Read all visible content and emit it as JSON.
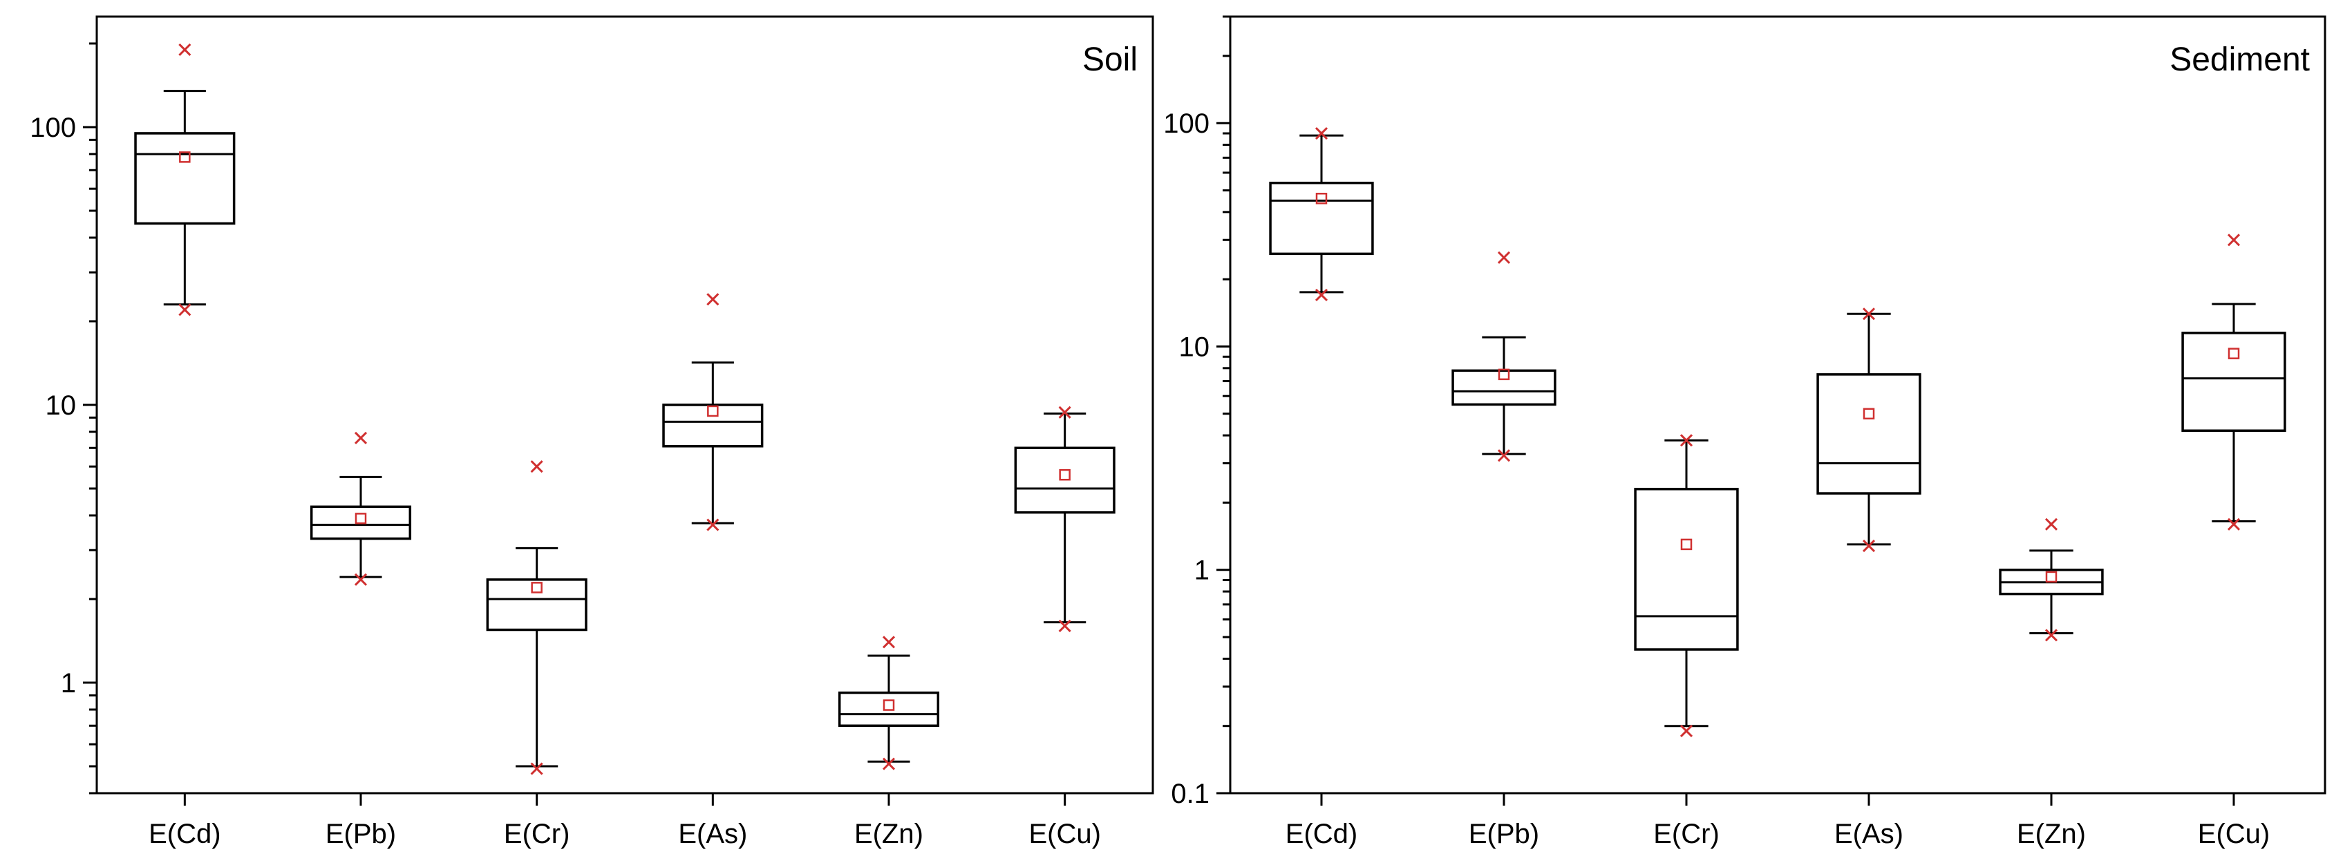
{
  "chart_data": [
    {
      "type": "box",
      "title": "Soil",
      "yscale": "log",
      "ylim": [
        0.4,
        250
      ],
      "yticks": [
        1,
        10,
        100
      ],
      "ytick_labels": [
        "1",
        "10",
        "100"
      ],
      "categories": [
        "E(Cd)",
        "E(Pb)",
        "E(Cr)",
        "E(As)",
        "E(Zn)",
        "E(Cu)"
      ],
      "boxes": [
        {
          "q1": 45,
          "median": 80,
          "q3": 95,
          "whisker_low": 23,
          "whisker_high": 135,
          "mean": 78,
          "min": 22,
          "max": 190
        },
        {
          "q1": 3.3,
          "median": 3.7,
          "q3": 4.3,
          "whisker_low": 2.4,
          "whisker_high": 5.5,
          "mean": 3.9,
          "min": 2.35,
          "max": 7.6
        },
        {
          "q1": 1.55,
          "median": 2.0,
          "q3": 2.35,
          "whisker_low": 0.5,
          "whisker_high": 3.05,
          "mean": 2.2,
          "min": 0.49,
          "max": 6.0
        },
        {
          "q1": 7.1,
          "median": 8.7,
          "q3": 10.0,
          "whisker_low": 3.75,
          "whisker_high": 14.2,
          "mean": 9.5,
          "min": 3.7,
          "max": 24.0
        },
        {
          "q1": 0.7,
          "median": 0.77,
          "q3": 0.92,
          "whisker_low": 0.52,
          "whisker_high": 1.25,
          "mean": 0.83,
          "min": 0.51,
          "max": 1.4
        },
        {
          "q1": 4.1,
          "median": 5.0,
          "q3": 7.0,
          "whisker_low": 1.65,
          "whisker_high": 9.3,
          "mean": 5.6,
          "min": 1.6,
          "max": 9.4
        }
      ],
      "colors": {
        "box": "#000000",
        "mean_marker": "#d03030",
        "extreme_marker": "#d03030"
      }
    },
    {
      "type": "box",
      "title": "Sediment",
      "yscale": "log",
      "ylim": [
        0.1,
        300
      ],
      "yticks": [
        0.1,
        1,
        10,
        100
      ],
      "ytick_labels": [
        "0.1",
        "1",
        "10",
        "100"
      ],
      "categories": [
        "E(Cd)",
        "E(Pb)",
        "E(Cr)",
        "E(As)",
        "E(Zn)",
        "E(Cu)"
      ],
      "boxes": [
        {
          "q1": 26,
          "median": 45,
          "q3": 54,
          "whisker_low": 17.5,
          "whisker_high": 88,
          "mean": 46,
          "min": 17,
          "max": 90
        },
        {
          "q1": 5.5,
          "median": 6.3,
          "q3": 7.8,
          "whisker_low": 3.3,
          "whisker_high": 11.0,
          "mean": 7.5,
          "min": 3.25,
          "max": 25.0
        },
        {
          "q1": 0.44,
          "median": 0.62,
          "q3": 2.3,
          "whisker_low": 0.2,
          "whisker_high": 3.8,
          "mean": 1.3,
          "min": 0.19,
          "max": 3.8
        },
        {
          "q1": 2.2,
          "median": 3.0,
          "q3": 7.5,
          "whisker_low": 1.3,
          "whisker_high": 14.0,
          "mean": 5.0,
          "min": 1.28,
          "max": 14.0
        },
        {
          "q1": 0.78,
          "median": 0.88,
          "q3": 1.0,
          "whisker_low": 0.52,
          "whisker_high": 1.22,
          "mean": 0.93,
          "min": 0.51,
          "max": 1.6
        },
        {
          "q1": 4.2,
          "median": 7.2,
          "q3": 11.5,
          "whisker_low": 1.65,
          "whisker_high": 15.5,
          "mean": 9.3,
          "min": 1.6,
          "max": 30.0
        }
      ],
      "colors": {
        "box": "#000000",
        "mean_marker": "#d03030",
        "extreme_marker": "#d03030"
      }
    }
  ]
}
